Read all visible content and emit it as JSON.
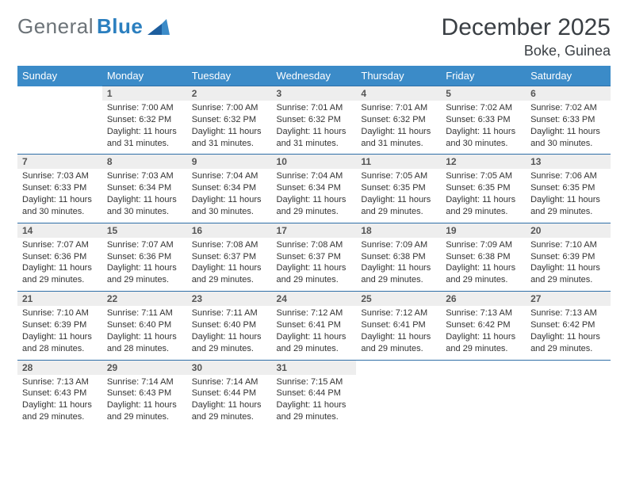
{
  "brand": {
    "word1": "General",
    "word2": "Blue"
  },
  "header": {
    "month": "December 2025",
    "location": "Boke, Guinea"
  },
  "colors": {
    "header_bg": "#3b8bc8",
    "header_text": "#ffffff",
    "row_border": "#2f6fa8",
    "daynum_bg": "#eeeeee",
    "daynum_text": "#555555",
    "body_text": "#333333",
    "title_text": "#3a3f44",
    "logo_gray": "#6c7378",
    "logo_blue": "#2b7fbf",
    "page_bg": "#ffffff"
  },
  "typography": {
    "month_fontsize": 30,
    "location_fontsize": 18,
    "weekday_fontsize": 13,
    "daynum_fontsize": 12,
    "body_fontsize": 11
  },
  "weekdays": [
    "Sunday",
    "Monday",
    "Tuesday",
    "Wednesday",
    "Thursday",
    "Friday",
    "Saturday"
  ],
  "first_weekday_column": 1,
  "days": [
    {
      "n": "1",
      "sunrise": "7:00 AM",
      "sunset": "6:32 PM",
      "daylight": "11 hours and 31 minutes."
    },
    {
      "n": "2",
      "sunrise": "7:00 AM",
      "sunset": "6:32 PM",
      "daylight": "11 hours and 31 minutes."
    },
    {
      "n": "3",
      "sunrise": "7:01 AM",
      "sunset": "6:32 PM",
      "daylight": "11 hours and 31 minutes."
    },
    {
      "n": "4",
      "sunrise": "7:01 AM",
      "sunset": "6:32 PM",
      "daylight": "11 hours and 31 minutes."
    },
    {
      "n": "5",
      "sunrise": "7:02 AM",
      "sunset": "6:33 PM",
      "daylight": "11 hours and 30 minutes."
    },
    {
      "n": "6",
      "sunrise": "7:02 AM",
      "sunset": "6:33 PM",
      "daylight": "11 hours and 30 minutes."
    },
    {
      "n": "7",
      "sunrise": "7:03 AM",
      "sunset": "6:33 PM",
      "daylight": "11 hours and 30 minutes."
    },
    {
      "n": "8",
      "sunrise": "7:03 AM",
      "sunset": "6:34 PM",
      "daylight": "11 hours and 30 minutes."
    },
    {
      "n": "9",
      "sunrise": "7:04 AM",
      "sunset": "6:34 PM",
      "daylight": "11 hours and 30 minutes."
    },
    {
      "n": "10",
      "sunrise": "7:04 AM",
      "sunset": "6:34 PM",
      "daylight": "11 hours and 29 minutes."
    },
    {
      "n": "11",
      "sunrise": "7:05 AM",
      "sunset": "6:35 PM",
      "daylight": "11 hours and 29 minutes."
    },
    {
      "n": "12",
      "sunrise": "7:05 AM",
      "sunset": "6:35 PM",
      "daylight": "11 hours and 29 minutes."
    },
    {
      "n": "13",
      "sunrise": "7:06 AM",
      "sunset": "6:35 PM",
      "daylight": "11 hours and 29 minutes."
    },
    {
      "n": "14",
      "sunrise": "7:07 AM",
      "sunset": "6:36 PM",
      "daylight": "11 hours and 29 minutes."
    },
    {
      "n": "15",
      "sunrise": "7:07 AM",
      "sunset": "6:36 PM",
      "daylight": "11 hours and 29 minutes."
    },
    {
      "n": "16",
      "sunrise": "7:08 AM",
      "sunset": "6:37 PM",
      "daylight": "11 hours and 29 minutes."
    },
    {
      "n": "17",
      "sunrise": "7:08 AM",
      "sunset": "6:37 PM",
      "daylight": "11 hours and 29 minutes."
    },
    {
      "n": "18",
      "sunrise": "7:09 AM",
      "sunset": "6:38 PM",
      "daylight": "11 hours and 29 minutes."
    },
    {
      "n": "19",
      "sunrise": "7:09 AM",
      "sunset": "6:38 PM",
      "daylight": "11 hours and 29 minutes."
    },
    {
      "n": "20",
      "sunrise": "7:10 AM",
      "sunset": "6:39 PM",
      "daylight": "11 hours and 29 minutes."
    },
    {
      "n": "21",
      "sunrise": "7:10 AM",
      "sunset": "6:39 PM",
      "daylight": "11 hours and 28 minutes."
    },
    {
      "n": "22",
      "sunrise": "7:11 AM",
      "sunset": "6:40 PM",
      "daylight": "11 hours and 28 minutes."
    },
    {
      "n": "23",
      "sunrise": "7:11 AM",
      "sunset": "6:40 PM",
      "daylight": "11 hours and 29 minutes."
    },
    {
      "n": "24",
      "sunrise": "7:12 AM",
      "sunset": "6:41 PM",
      "daylight": "11 hours and 29 minutes."
    },
    {
      "n": "25",
      "sunrise": "7:12 AM",
      "sunset": "6:41 PM",
      "daylight": "11 hours and 29 minutes."
    },
    {
      "n": "26",
      "sunrise": "7:13 AM",
      "sunset": "6:42 PM",
      "daylight": "11 hours and 29 minutes."
    },
    {
      "n": "27",
      "sunrise": "7:13 AM",
      "sunset": "6:42 PM",
      "daylight": "11 hours and 29 minutes."
    },
    {
      "n": "28",
      "sunrise": "7:13 AM",
      "sunset": "6:43 PM",
      "daylight": "11 hours and 29 minutes."
    },
    {
      "n": "29",
      "sunrise": "7:14 AM",
      "sunset": "6:43 PM",
      "daylight": "11 hours and 29 minutes."
    },
    {
      "n": "30",
      "sunrise": "7:14 AM",
      "sunset": "6:44 PM",
      "daylight": "11 hours and 29 minutes."
    },
    {
      "n": "31",
      "sunrise": "7:15 AM",
      "sunset": "6:44 PM",
      "daylight": "11 hours and 29 minutes."
    }
  ],
  "labels": {
    "sunrise": "Sunrise:",
    "sunset": "Sunset:",
    "daylight": "Daylight:"
  }
}
